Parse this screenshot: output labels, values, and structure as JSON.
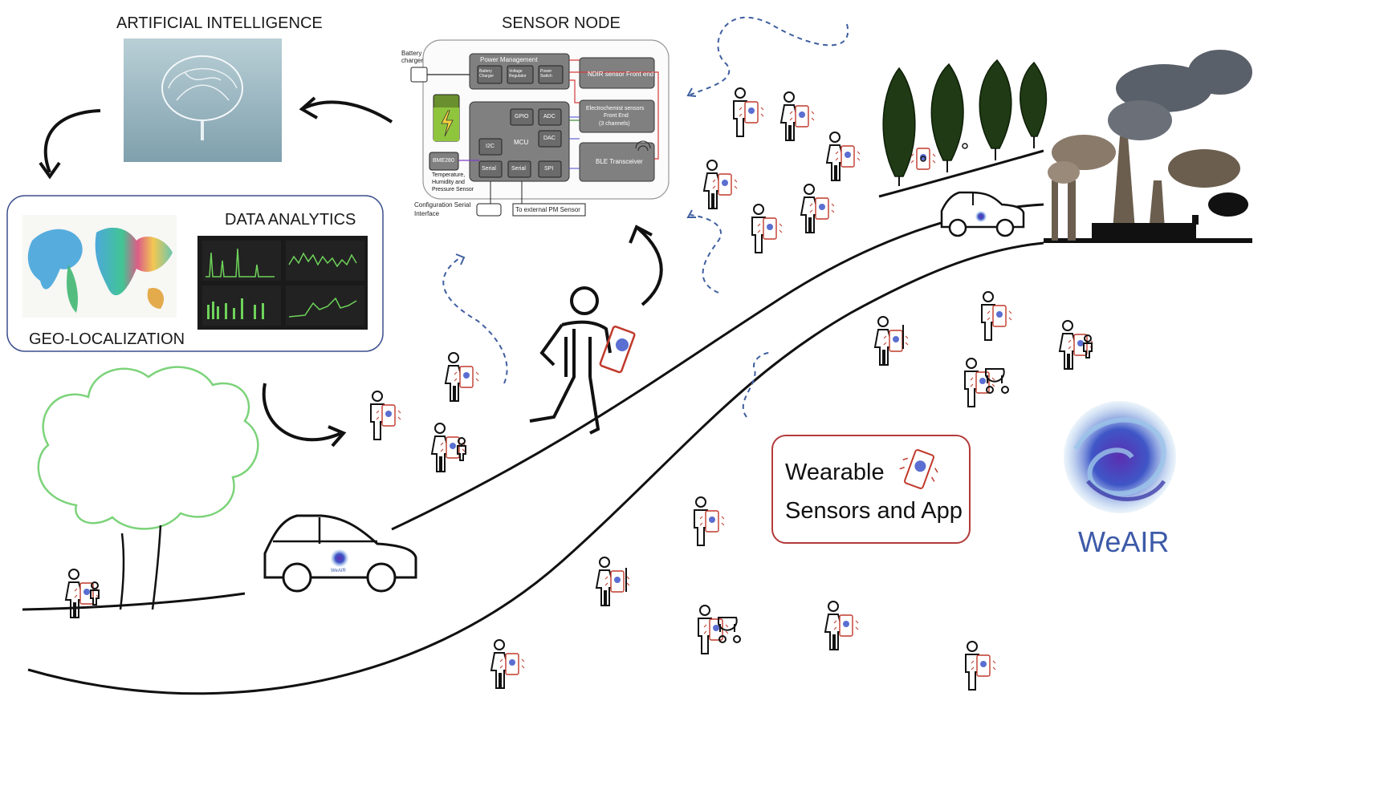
{
  "labels": {
    "ai": "ARTIFICIAL INTELLIGENCE",
    "sensor_node": "SENSOR NODE",
    "data_analytics": "DATA ANALYTICS",
    "geo_localization": "GEO-LOCALIZATION",
    "wearable_line1": "Wearable",
    "wearable_line2": "Sensors and App",
    "brand": "WeAIR",
    "car_logo": "WeAIR"
  },
  "sensor_schematic": {
    "battery_charger": "Battery charger",
    "power_management": "Power Management",
    "battery_charger_block": "Battery Charger",
    "voltage_regulator": "Voltage Regulator",
    "power_switch": "Power Switch",
    "ndir": "NDIR sensor Front end",
    "electrochem_line1": "Electrochemist sensors",
    "electrochem_line2": "Front End",
    "electrochem_line3": "(3 channels)",
    "ble": "BLE Transceiver",
    "mcu": "MCU",
    "gpio": "GPIO",
    "adc": "ADC",
    "dac": "DAC",
    "i2c": "I2C",
    "serial1": "Serial",
    "serial2": "Serial",
    "spi": "SPI",
    "bme280": "BME280",
    "bme_desc1": "Temperature,",
    "bme_desc2": "Humidity and",
    "bme_desc3": "Pressure Sensor",
    "config_serial1": "Configuration Serial",
    "config_serial2": "Interface",
    "external_pm": "To external PM Sensor"
  },
  "colors": {
    "road": "#111111",
    "tree_outline": "#7cd37a",
    "wearable_border": "#b33a3a",
    "phone_red": "#c0392b",
    "dashed_arrow": "#3f5f9f",
    "geo_box_border": "#3b4f8c",
    "brand_blue": "#3c5aa8",
    "dark_tree": "#1f3a14",
    "smoke": "#555c66"
  }
}
